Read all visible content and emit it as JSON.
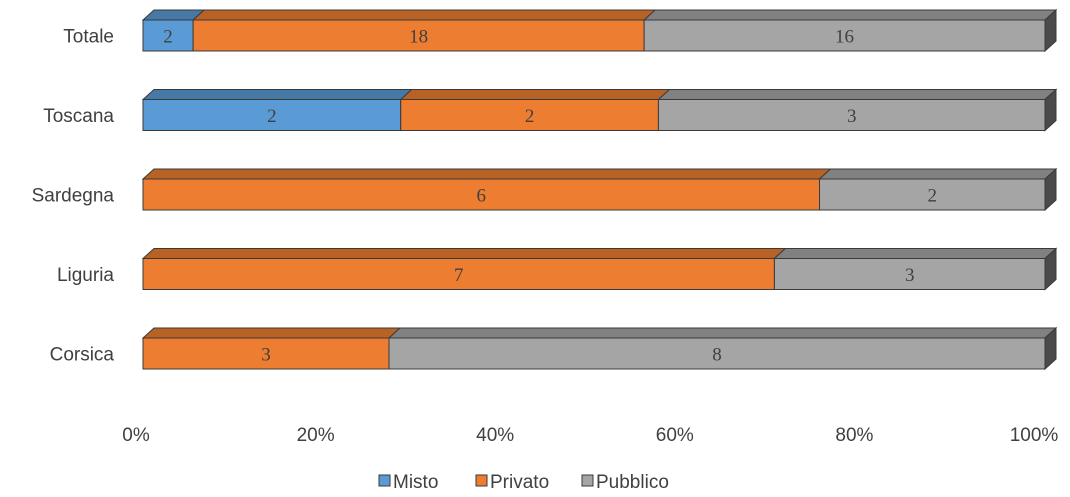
{
  "chart_data": {
    "type": "bar",
    "orientation": "horizontal",
    "stacked": "percent",
    "style": "3d",
    "categories": [
      "Totale",
      "Toscana",
      "Sardegna",
      "Liguria",
      "Corsica"
    ],
    "series": [
      {
        "name": "Misto",
        "color": "#5b9bd5",
        "values": [
          2,
          2,
          0,
          0,
          0
        ]
      },
      {
        "name": "Privato",
        "color": "#ed7d31",
        "values": [
          18,
          2,
          6,
          7,
          3
        ]
      },
      {
        "name": "Pubblico",
        "color": "#a5a5a5",
        "values": [
          16,
          3,
          2,
          3,
          8
        ]
      }
    ],
    "x_ticks": [
      "0%",
      "20%",
      "40%",
      "60%",
      "80%",
      "100%"
    ],
    "xlim": [
      0,
      100
    ],
    "grid": false,
    "legend": "bottom"
  }
}
